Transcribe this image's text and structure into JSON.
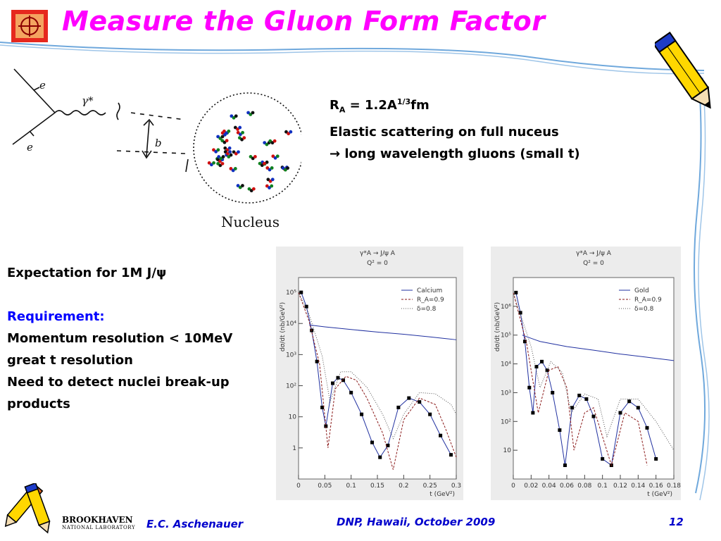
{
  "slide": {
    "title": "Measure the Gluon Form Factor",
    "right_text": {
      "line1_R": "R",
      "line1_sub": "A",
      "line1_mid": " = 1.2A",
      "line1_sup": "1/3",
      "line1_end": "fm",
      "line2": "Elastic scattering on full nuceus",
      "line3_arrow": "→",
      "line3": " long wavelength gluons (small t)"
    },
    "left_text": {
      "expectation": "Expectation for 1M J/ψ",
      "requirement_heading": "Requirement:",
      "items": [
        "Momentum resolution < 10MeV",
        "great t resolution",
        "Need to detect nuclei break-up",
        "products"
      ]
    },
    "sketch": {
      "e_top": "e",
      "e_bottom": "e",
      "gamma": "γ*",
      "b": "b",
      "nucleus": "Nucleus"
    },
    "footer": {
      "institution": "BROOKHAVEN",
      "institution_sub": "NATIONAL LABORATORY",
      "author": "E.C. Aschenauer",
      "event": "DNP, Hawaii, October 2009",
      "page": "12"
    }
  },
  "chart_data": [
    {
      "type": "line",
      "title": "γ*A → J/ψ A",
      "subtitle": "Q² = 0",
      "xlabel": "t  (GeV²)",
      "ylabel": "dσ/dt  (nb/GeV²)",
      "xlim": [
        0,
        0.3
      ],
      "yscale": "log",
      "ylim": [
        0.1,
        300000
      ],
      "xticks": [
        "0",
        "0.05",
        "0.1",
        "0.15",
        "0.2",
        "0.25",
        "0.3"
      ],
      "yticks": [
        "1",
        "10",
        "10²",
        "10³",
        "10⁴",
        "10⁵"
      ],
      "legend": [
        "Calcium",
        "R_A=0.9",
        "δ=0.8"
      ],
      "legend_position": "top-right",
      "series": [
        {
          "name": "Calcium",
          "style": "points",
          "x": [
            0.005,
            0.015,
            0.025,
            0.035,
            0.045,
            0.052,
            0.065,
            0.075,
            0.085,
            0.1,
            0.12,
            0.14,
            0.155,
            0.17,
            0.19,
            0.21,
            0.23,
            0.25,
            0.27,
            0.29
          ],
          "y": [
            100000,
            35000,
            6000,
            600,
            20,
            5,
            120,
            180,
            150,
            60,
            12,
            1.5,
            0.5,
            1.2,
            20,
            40,
            30,
            12,
            2.5,
            0.6
          ]
        },
        {
          "name": "R_A=0.9",
          "style": "dashed",
          "x": [
            0,
            0.02,
            0.04,
            0.056,
            0.07,
            0.09,
            0.11,
            0.13,
            0.16,
            0.18,
            0.2,
            0.23,
            0.26,
            0.28,
            0.3
          ],
          "y": [
            100000,
            12000,
            500,
            1,
            80,
            200,
            150,
            40,
            3,
            0.2,
            8,
            40,
            25,
            4,
            0.5
          ]
        },
        {
          "name": "δ=0.8",
          "style": "dotted",
          "x": [
            0,
            0.02,
            0.045,
            0.06,
            0.08,
            0.1,
            0.13,
            0.16,
            0.18,
            0.2,
            0.23,
            0.26,
            0.29,
            0.3
          ],
          "y": [
            100000,
            20000,
            900,
            30,
            280,
            280,
            90,
            12,
            2,
            12,
            60,
            55,
            25,
            12
          ]
        },
        {
          "name": "coherent",
          "style": "line",
          "x": [
            0.02,
            0.05,
            0.1,
            0.15,
            0.2,
            0.25,
            0.3
          ],
          "y": [
            9000,
            7800,
            6400,
            5300,
            4500,
            3700,
            3000
          ]
        }
      ]
    },
    {
      "type": "line",
      "title": "γ*A → J/ψ A",
      "subtitle": "Q² = 0",
      "xlabel": "t  (GeV²)",
      "ylabel": "dσ/dt  (nb/GeV²)",
      "xlim": [
        0,
        0.18
      ],
      "yscale": "log",
      "ylim": [
        1,
        10000000
      ],
      "xticks": [
        "0",
        "0.02",
        "0.04",
        "0.06",
        "0.08",
        "0.1",
        "0.12",
        "0.14",
        "0.16",
        "0.18"
      ],
      "yticks": [
        "10",
        "10²",
        "10³",
        "10⁴",
        "10⁵",
        "10⁶"
      ],
      "legend": [
        "Gold",
        "R_A=0.9",
        "δ=0.8"
      ],
      "legend_position": "top-right",
      "series": [
        {
          "name": "Gold",
          "style": "points",
          "x": [
            0.003,
            0.008,
            0.013,
            0.018,
            0.022,
            0.026,
            0.032,
            0.038,
            0.044,
            0.052,
            0.058,
            0.066,
            0.074,
            0.082,
            0.09,
            0.1,
            0.11,
            0.12,
            0.13,
            0.14,
            0.15,
            0.16
          ],
          "y": [
            3000000,
            600000,
            60000,
            1500,
            200,
            8000,
            12000,
            6000,
            1000,
            50,
            3,
            300,
            800,
            600,
            150,
            5,
            3,
            200,
            500,
            300,
            60,
            5
          ]
        },
        {
          "name": "R_A=0.9",
          "style": "dashed",
          "x": [
            0,
            0.015,
            0.028,
            0.04,
            0.05,
            0.06,
            0.068,
            0.08,
            0.09,
            0.1,
            0.11,
            0.125,
            0.14,
            0.15
          ],
          "y": [
            3000000,
            50000,
            200,
            6000,
            8000,
            1500,
            10,
            200,
            300,
            30,
            3,
            200,
            100,
            3
          ]
        },
        {
          "name": "δ=0.8",
          "style": "dotted",
          "x": [
            0,
            0.02,
            0.03,
            0.042,
            0.055,
            0.065,
            0.08,
            0.095,
            0.105,
            0.12,
            0.14,
            0.16,
            0.18
          ],
          "y": [
            3000000,
            40000,
            1500,
            12000,
            5000,
            200,
            900,
            600,
            30,
            600,
            600,
            100,
            10
          ]
        },
        {
          "name": "coherent",
          "style": "line",
          "x": [
            0.01,
            0.03,
            0.06,
            0.09,
            0.12,
            0.15,
            0.18
          ],
          "y": [
            100000,
            60000,
            40000,
            30000,
            22000,
            17000,
            13000
          ]
        }
      ]
    }
  ]
}
